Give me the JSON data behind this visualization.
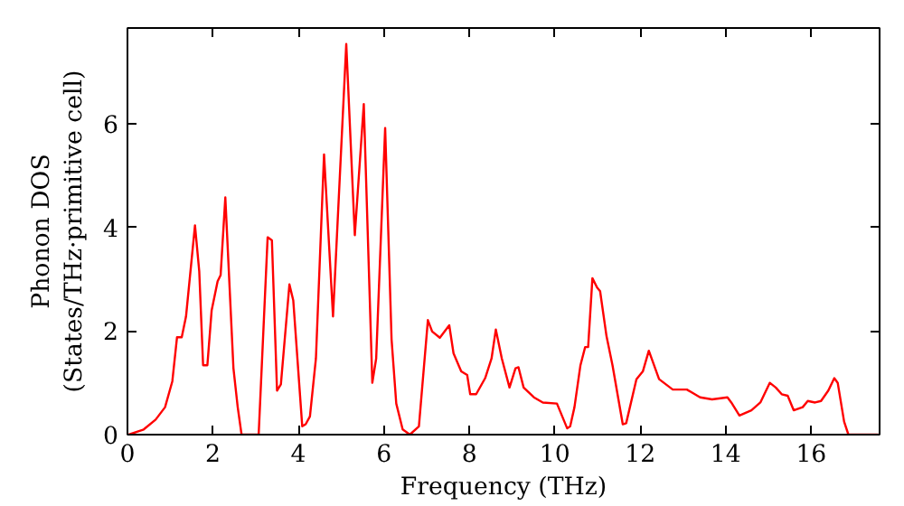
{
  "chart_data": {
    "type": "line",
    "xlabel": "Frequency (THz)",
    "ylabel": "Phonon DOS\n(States/THz·primitive cell)",
    "xlim": [
      0,
      17.6
    ],
    "ylim": [
      0,
      7.85
    ],
    "xticks": [
      0,
      2,
      4,
      6,
      8,
      10,
      12,
      14,
      16
    ],
    "yticks": [
      0,
      2,
      4,
      6
    ],
    "grid": false,
    "series": [
      {
        "color": "#ff0000",
        "x": [
          0.03,
          0.38,
          0.66,
          0.88,
          1.05,
          1.16,
          1.27,
          1.37,
          1.58,
          1.68,
          1.77,
          1.87,
          1.97,
          2.11,
          2.18,
          2.29,
          2.48,
          2.58,
          2.67,
          3.07,
          3.28,
          3.38,
          3.5,
          3.59,
          3.79,
          3.88,
          4.09,
          4.17,
          4.27,
          4.41,
          4.6,
          4.81,
          5.12,
          5.32,
          5.53,
          5.73,
          5.82,
          6.03,
          6.18,
          6.29,
          6.44,
          6.61,
          6.82,
          7.03,
          7.13,
          7.31,
          7.53,
          7.63,
          7.81,
          7.95,
          8.02,
          8.16,
          8.37,
          8.52,
          8.62,
          8.76,
          8.94,
          9.08,
          9.15,
          9.27,
          9.51,
          9.72,
          10.05,
          10.29,
          10.36,
          10.46,
          10.6,
          10.71,
          10.78,
          10.88,
          10.99,
          11.06,
          11.21,
          11.35,
          11.59,
          11.67,
          11.91,
          12.06,
          12.2,
          12.44,
          12.76,
          13.09,
          13.4,
          13.68,
          14.04,
          14.13,
          14.32,
          14.6,
          14.81,
          15.03,
          15.17,
          15.31,
          15.45,
          15.59,
          15.8,
          15.92,
          16.09,
          16.23,
          16.4,
          16.54,
          16.62,
          16.77,
          16.87,
          17.57
        ],
        "values": [
          0,
          0.1,
          0.29,
          0.53,
          1.03,
          1.88,
          1.88,
          2.28,
          4.04,
          3.15,
          1.34,
          1.34,
          2.4,
          2.96,
          3.08,
          4.58,
          1.28,
          0.53,
          0,
          0,
          3.81,
          3.75,
          0.85,
          0.97,
          2.9,
          2.59,
          0.16,
          0.2,
          0.35,
          1.47,
          5.41,
          2.28,
          7.54,
          3.85,
          6.38,
          1.0,
          1.47,
          5.92,
          1.84,
          0.6,
          0.1,
          0,
          0.16,
          2.21,
          1.99,
          1.87,
          2.11,
          1.57,
          1.22,
          1.15,
          0.78,
          0.78,
          1.09,
          1.47,
          2.03,
          1.47,
          0.91,
          1.28,
          1.3,
          0.91,
          0.72,
          0.62,
          0.6,
          0.12,
          0.16,
          0.53,
          1.34,
          1.69,
          1.69,
          3.02,
          2.84,
          2.77,
          1.9,
          1.34,
          0.2,
          0.22,
          1.07,
          1.22,
          1.62,
          1.07,
          0.87,
          0.87,
          0.72,
          0.68,
          0.72,
          0.62,
          0.37,
          0.47,
          0.62,
          1.0,
          0.91,
          0.78,
          0.75,
          0.47,
          0.53,
          0.65,
          0.62,
          0.65,
          0.85,
          1.09,
          1.0,
          0.25,
          0,
          0
        ]
      }
    ]
  }
}
